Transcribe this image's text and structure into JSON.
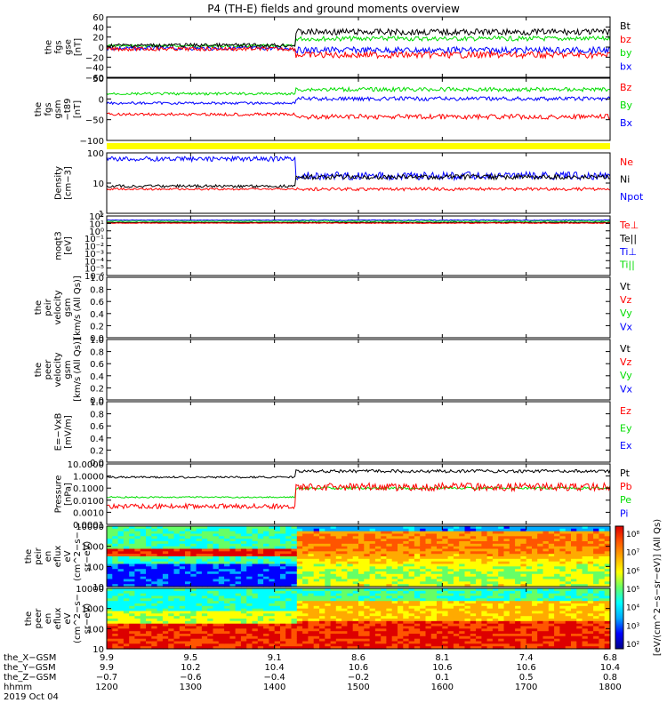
{
  "title": "P4 (TH-E) fields and ground moments overview",
  "colors": {
    "black": "#000000",
    "red": "#ff0000",
    "green": "#00dd00",
    "blue": "#0000ff",
    "yellow": "#ffff00"
  },
  "chart_data": {
    "type": "line",
    "panels": [
      {
        "id": "fgs",
        "ylabel": [
          "the",
          "fgs",
          "gse",
          "[nT]"
        ],
        "ticks": [
          "60",
          "40",
          "20",
          "0",
          "−20",
          "−40",
          "−60"
        ],
        "ylim": [
          -60,
          60
        ],
        "legend": [
          {
            "text": "Bt",
            "color": "#000000"
          },
          {
            "text": "bz",
            "color": "#ff0000"
          },
          {
            "text": "by",
            "color": "#00dd00"
          },
          {
            "text": "bx",
            "color": "#0000ff"
          }
        ]
      },
      {
        "id": "fgs_t89",
        "ylabel": [
          "the",
          "fgs",
          "gsm",
          "−t89",
          "[nT]"
        ],
        "ticks": [
          "50",
          "0",
          "−50",
          "−100"
        ],
        "ylim": [
          -120,
          50
        ],
        "legend": [
          {
            "text": "Bz",
            "color": "#ff0000"
          },
          {
            "text": "By",
            "color": "#00dd00"
          },
          {
            "text": "Bx",
            "color": "#0000ff"
          }
        ]
      },
      {
        "id": "density",
        "ylabel": [
          "Density",
          "[cm−3]"
        ],
        "ticks": [
          "100",
          "10",
          "1"
        ],
        "scale": "log",
        "legend": [
          {
            "text": "Ne",
            "color": "#ff0000"
          },
          {
            "text": "Ni",
            "color": "#000000"
          },
          {
            "text": "Npot",
            "color": "#0000ff"
          }
        ]
      },
      {
        "id": "temp",
        "ylabel": [
          "moqt3",
          "[eV]"
        ],
        "ticks": [
          "10²",
          "10¹",
          "10⁰",
          "10⁻¹",
          "10⁻²",
          "10⁻³",
          "10⁻⁴",
          "10⁻⁵",
          "10⁻⁶"
        ],
        "scale": "log",
        "legend": [
          {
            "text": "Te⊥",
            "color": "#ff0000"
          },
          {
            "text": "Te||",
            "color": "#000000"
          },
          {
            "text": "Ti⊥",
            "color": "#0000ff"
          },
          {
            "text": "Ti||",
            "color": "#00dd00"
          }
        ]
      },
      {
        "id": "peir_vel",
        "ylabel": [
          "the",
          "peir",
          "velocity",
          "gsm",
          "[km/s (All Qs)]"
        ],
        "ticks": [
          "1.0",
          "0.8",
          "0.6",
          "0.4",
          "0.2",
          "0.0"
        ],
        "ylim": [
          0,
          1
        ],
        "legend": [
          {
            "text": "Vt",
            "color": "#000000"
          },
          {
            "text": "Vz",
            "color": "#ff0000"
          },
          {
            "text": "Vy",
            "color": "#00dd00"
          },
          {
            "text": "Vx",
            "color": "#0000ff"
          }
        ]
      },
      {
        "id": "peer_vel",
        "ylabel": [
          "the",
          "peer",
          "velocity",
          "gsm",
          "[km/s (All Qs)]"
        ],
        "ticks": [
          "1.0",
          "0.8",
          "0.6",
          "0.4",
          "0.2",
          "0.0"
        ],
        "ylim": [
          0,
          1
        ],
        "legend": [
          {
            "text": "Vt",
            "color": "#000000"
          },
          {
            "text": "Vz",
            "color": "#ff0000"
          },
          {
            "text": "Vy",
            "color": "#00dd00"
          },
          {
            "text": "Vx",
            "color": "#0000ff"
          }
        ]
      },
      {
        "id": "e_vxb",
        "ylabel": [
          "E=−VxB",
          "[mV/m]"
        ],
        "ticks": [
          "1.0",
          "0.8",
          "0.6",
          "0.4",
          "0.2",
          "0.0"
        ],
        "ylim": [
          0,
          1
        ],
        "legend": [
          {
            "text": "Ez",
            "color": "#ff0000"
          },
          {
            "text": "Ey",
            "color": "#00dd00"
          },
          {
            "text": "Ex",
            "color": "#0000ff"
          }
        ]
      },
      {
        "id": "pressure",
        "ylabel": [
          "Pressure",
          "[nPa]"
        ],
        "ticks": [
          "10.0000",
          "1.0000",
          "0.1000",
          "0.0100",
          "0.0010",
          "0.0001"
        ],
        "scale": "log",
        "legend": [
          {
            "text": "Pt",
            "color": "#000000"
          },
          {
            "text": "Pb",
            "color": "#ff0000"
          },
          {
            "text": "Pe",
            "color": "#00dd00"
          },
          {
            "text": "Pi",
            "color": "#0000ff"
          }
        ]
      },
      {
        "id": "peir_spec",
        "ylabel": [
          "the",
          "peir",
          "en",
          "eflux",
          "eV",
          "(cm^2−s−",
          "sr−eV)"
        ],
        "ticks": [
          "10000",
          "1000",
          "100",
          "10"
        ],
        "scale": "log"
      },
      {
        "id": "peer_spec",
        "ylabel": [
          "the",
          "peer",
          "en",
          "eflux",
          "eV",
          "(cm^2−s−",
          "sr−eV)"
        ],
        "ticks": [
          "10000",
          "1000",
          "100",
          "10"
        ],
        "scale": "log"
      }
    ],
    "colorbar": {
      "ticks": [
        "10⁸",
        "10⁷",
        "10⁶",
        "10⁵",
        "10⁴",
        "10³",
        "10²"
      ],
      "label": "[eV/(cm^2−s−sr−eV)] (All Qs)"
    },
    "xaxis": {
      "row_labels": [
        "the_X−GSM",
        "the_Y−GSM",
        "the_Z−GSM",
        "hhmm",
        "2019 Oct 04"
      ],
      "x_gsm": [
        "9.9",
        "9.5",
        "9.1",
        "8.6",
        "8.1",
        "7.4",
        "6.8"
      ],
      "y_gsm": [
        "9.9",
        "10.2",
        "10.4",
        "10.6",
        "10.6",
        "10.6",
        "10.4"
      ],
      "z_gsm": [
        "−0.7",
        "−0.6",
        "−0.4",
        "−0.2",
        "0.1",
        "0.5",
        "0.8"
      ],
      "hhmm": [
        "1200",
        "1300",
        "1400",
        "1500",
        "1600",
        "1700",
        "1800"
      ]
    }
  }
}
